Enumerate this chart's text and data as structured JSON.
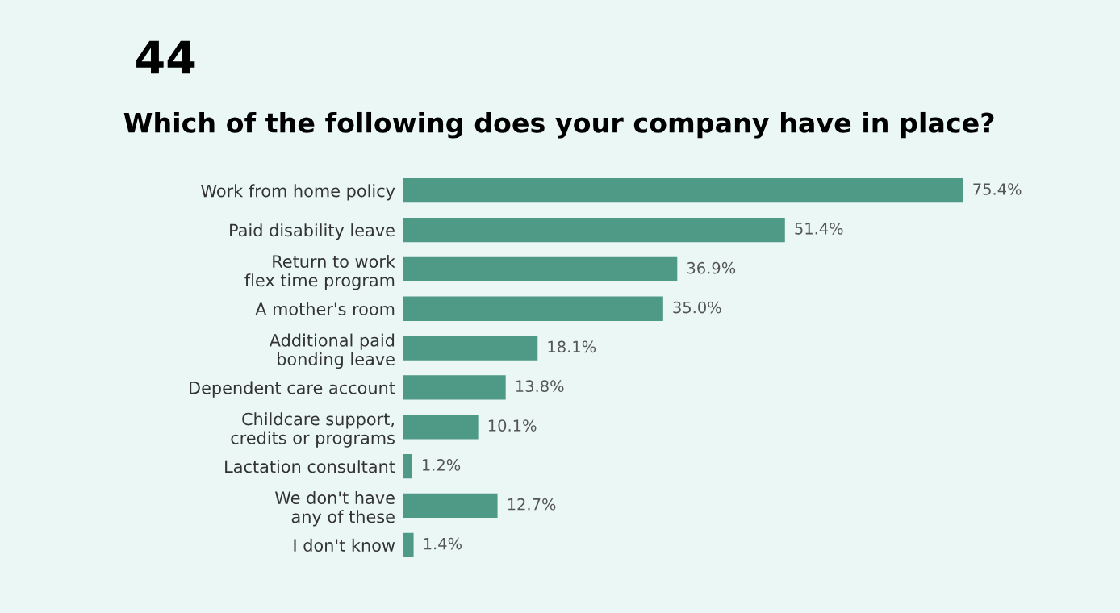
{
  "chart_data": {
    "type": "bar",
    "orientation": "horizontal",
    "title": "Which of the following does your company have in place?",
    "annotations": [
      "44"
    ],
    "categories": [
      "Work from home policy",
      "Paid disability leave",
      "Return to work\nflex time program",
      "A mother's room",
      "Additional paid\nbonding leave",
      "Dependent care account",
      "Childcare support,\ncredits or programs",
      "Lactation consultant",
      "We don't have\nany of these",
      "I don't know"
    ],
    "values": [
      75.4,
      51.4,
      36.9,
      35.0,
      18.1,
      13.8,
      10.1,
      1.2,
      12.7,
      1.4
    ],
    "value_labels": [
      "75.4%",
      "51.4%",
      "36.9%",
      "35.0%",
      "18.1%",
      "13.8%",
      "10.1%",
      "1.2%",
      "12.7%",
      "1.4%"
    ],
    "color": "#4e9a87",
    "xlim": [
      0,
      75.4
    ],
    "tick_labels": "y",
    "grid": false,
    "legend": false
  }
}
